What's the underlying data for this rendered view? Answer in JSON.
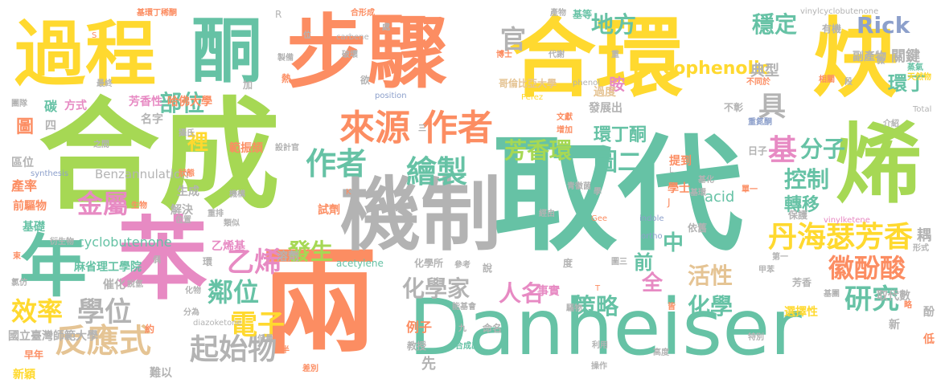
{
  "words": [
    {
      "text": "取代",
      "color": "#66c2a5"
    },
    {
      "text": "合成",
      "color": "#a6d854"
    },
    {
      "text": "合環",
      "color": "#ffd92f"
    },
    {
      "text": "炔",
      "color": "#ffd92f"
    },
    {
      "text": "烯",
      "color": "#a6d854"
    },
    {
      "text": "苯",
      "color": "#e78ac3"
    },
    {
      "text": "兩",
      "color": "#fc8d62"
    },
    {
      "text": "Danheiser",
      "color": "#66c2a5"
    },
    {
      "text": "步驟",
      "color": "#fc8d62"
    },
    {
      "text": "機制",
      "color": "#b3b3b3"
    },
    {
      "text": "過程",
      "color": "#ffd92f"
    },
    {
      "text": "酮",
      "color": "#66c2a5"
    },
    {
      "text": "年",
      "color": "#66c2a5"
    },
    {
      "text": "來源",
      "color": "#fc8d62"
    },
    {
      "text": "作者",
      "color": "#fc8d62"
    },
    {
      "text": "作者",
      "color": "#66c2a5"
    },
    {
      "text": "繪製",
      "color": "#66c2a5"
    },
    {
      "text": "丹海瑟芳香",
      "color": "#ffd92f"
    },
    {
      "text": "徽酚酸",
      "color": "#fc8d62"
    },
    {
      "text": "基",
      "color": "#e78ac3"
    },
    {
      "text": "分子",
      "color": "#66c2a5"
    },
    {
      "text": "研究",
      "color": "#66c2a5"
    },
    {
      "text": "反應式",
      "color": "#e5c494"
    },
    {
      "text": "起始物",
      "color": "#b3b3b3"
    },
    {
      "text": "學位",
      "color": "#b3b3b3"
    },
    {
      "text": "效率",
      "color": "#ffd92f"
    },
    {
      "text": "金屬",
      "color": "#e78ac3"
    },
    {
      "text": "乙烯",
      "color": "#e78ac3"
    },
    {
      "text": "電子",
      "color": "#ffd92f"
    },
    {
      "text": "鄰位",
      "color": "#66c2a5"
    },
    {
      "text": "化學家",
      "color": "#b3b3b3"
    },
    {
      "text": "人名",
      "color": "#e78ac3"
    },
    {
      "text": "策略",
      "color": "#66c2a5"
    },
    {
      "text": "化學",
      "color": "#66c2a5"
    },
    {
      "text": "活性",
      "color": "#e5c494"
    },
    {
      "text": "發生",
      "color": "#a6d854"
    },
    {
      "text": "芳香環",
      "color": "#a6d854"
    },
    {
      "text": "控制",
      "color": "#66c2a5"
    },
    {
      "text": "轉移",
      "color": "#66c2a5"
    },
    {
      "text": "環丁酮",
      "color": "#66c2a5"
    },
    {
      "text": "環丁",
      "color": "#66c2a5"
    },
    {
      "text": "圖二",
      "color": "#66c2a5"
    },
    {
      "text": "地方",
      "color": "#66c2a5"
    },
    {
      "text": "穩定",
      "color": "#66c2a5"
    },
    {
      "text": "mycophenolic",
      "color": "#ffd92f"
    },
    {
      "text": "Rick",
      "color": "#8da0cb"
    },
    {
      "text": "官",
      "color": "#b3b3b3"
    },
    {
      "text": "部位",
      "color": "#66c2a5"
    },
    {
      "text": "圖",
      "color": "#fc8d62"
    },
    {
      "text": "具",
      "color": "#b3b3b3"
    },
    {
      "text": "裡",
      "color": "#ffd92f"
    },
    {
      "text": "前",
      "color": "#66c2a5"
    },
    {
      "text": "中",
      "color": "#66c2a5"
    },
    {
      "text": "全",
      "color": "#e78ac3"
    },
    {
      "text": "耦",
      "color": "#b3b3b3"
    },
    {
      "text": "cyclobutenone",
      "color": "#66c2a5"
    },
    {
      "text": "acid",
      "color": "#66c2a5"
    },
    {
      "text": "Benzannulation",
      "color": "#b3b3b3"
    },
    {
      "text": "胺",
      "color": "#e78ac3"
    },
    {
      "text": "關鍵",
      "color": "#b3b3b3"
    },
    {
      "text": "典型",
      "color": "#b3b3b3"
    },
    {
      "text": "副產物",
      "color": "#b3b3b3"
    },
    {
      "text": "芳香性",
      "color": "#e78ac3"
    },
    {
      "text": "哈佛大學",
      "color": "#fc8d62"
    },
    {
      "text": "麻省理工學院",
      "color": "#66c2a5"
    },
    {
      "text": "國立臺灣師範大學",
      "color": "#b3b3b3"
    },
    {
      "text": "哥倫比亞大學",
      "color": "#e5c494"
    },
    {
      "text": "乙烯基",
      "color": "#e78ac3"
    },
    {
      "text": "產率",
      "color": "#fc8d62"
    },
    {
      "text": "前驅物",
      "color": "#fc8d62"
    },
    {
      "text": "基礎",
      "color": "#66c2a5"
    },
    {
      "text": "區位",
      "color": "#b3b3b3"
    },
    {
      "text": "碳",
      "color": "#66c2a5"
    },
    {
      "text": "方式",
      "color": "#e78ac3"
    },
    {
      "text": "名字",
      "color": "#b3b3b3"
    },
    {
      "text": "生成",
      "color": "#b3b3b3"
    },
    {
      "text": "解決",
      "color": "#b3b3b3"
    },
    {
      "text": "範振頡",
      "color": "#fc8d62"
    },
    {
      "text": "試劑",
      "color": "#fc8d62"
    },
    {
      "text": "設計官",
      "color": "#b3b3b3"
    },
    {
      "text": "溶劑",
      "color": "#b3b3b3"
    },
    {
      "text": "例子",
      "color": "#fc8d62"
    },
    {
      "text": "教授",
      "color": "#b3b3b3"
    },
    {
      "text": "先",
      "color": "#b3b3b3"
    },
    {
      "text": "事實",
      "color": "#e78ac3"
    },
    {
      "text": "選擇性",
      "color": "#ffd92f"
    },
    {
      "text": "取代數",
      "color": "#b3b3b3"
    },
    {
      "text": "酚",
      "color": "#b3b3b3"
    },
    {
      "text": "芳香",
      "color": "#b3b3b3"
    },
    {
      "text": "保護",
      "color": "#b3b3b3"
    },
    {
      "text": "依舊",
      "color": "#b3b3b3"
    },
    {
      "text": "acetylene",
      "color": "#66c2a5"
    },
    {
      "text": "vinylketene",
      "color": "#e78ac3"
    },
    {
      "text": "indole",
      "color": "#8da0cb"
    },
    {
      "text": "ortho",
      "color": "#8da0cb"
    },
    {
      "text": "Gee",
      "color": "#fc8d62"
    },
    {
      "text": "diazoketone",
      "color": "#b3b3b3"
    },
    {
      "text": "synthesis",
      "color": "#8da0cb"
    },
    {
      "text": "position",
      "color": "#8da0cb"
    },
    {
      "text": "phenol",
      "color": "#b3b3b3"
    },
    {
      "text": "carbene",
      "color": "#b3b3b3"
    },
    {
      "text": "Perez",
      "color": "#ffd92f"
    },
    {
      "text": "Total",
      "color": "#b3b3b3"
    },
    {
      "text": "vinylcyclobutenone",
      "color": "#b3b3b3"
    },
    {
      "text": "J",
      "color": "#fc8d62"
    },
    {
      "text": "R",
      "color": "#b3b3b3"
    },
    {
      "text": "K",
      "color": "#fc8d62"
    },
    {
      "text": "L",
      "color": "#b3b3b3"
    },
    {
      "text": "基環丁稀酮",
      "color": "#fc8d62"
    },
    {
      "text": "合形成",
      "color": "#fc8d62"
    },
    {
      "text": "基等",
      "color": "#66c2a5"
    },
    {
      "text": "有機",
      "color": "#b3b3b3"
    },
    {
      "text": "蒸氣",
      "color": "#66c2a5"
    },
    {
      "text": "天然物",
      "color": "#ffd92f"
    },
    {
      "text": "發展出",
      "color": "#b3b3b3"
    },
    {
      "text": "過度",
      "color": "#e5c494"
    },
    {
      "text": "學士",
      "color": "#fc8d62"
    },
    {
      "text": "提到",
      "color": "#fc8d62"
    },
    {
      "text": "不彰",
      "color": "#b3b3b3"
    },
    {
      "text": "日子",
      "color": "#b3b3b3"
    },
    {
      "text": "化學所",
      "color": "#b3b3b3"
    },
    {
      "text": "參考",
      "color": "#b3b3b3"
    },
    {
      "text": "能基會",
      "color": "#b3b3b3"
    },
    {
      "text": "合成出",
      "color": "#66c2a5"
    },
    {
      "text": "命名",
      "color": "#b3b3b3"
    },
    {
      "text": "差別",
      "color": "#fc8d62"
    },
    {
      "text": "操作",
      "color": "#b3b3b3"
    },
    {
      "text": "利用",
      "color": "#b3b3b3"
    },
    {
      "text": "高度",
      "color": "#b3b3b3"
    },
    {
      "text": "特別",
      "color": "#b3b3b3"
    },
    {
      "text": "低",
      "color": "#fc8d62"
    },
    {
      "text": "新",
      "color": "#b3b3b3"
    },
    {
      "text": "介紹",
      "color": "#b3b3b3"
    },
    {
      "text": "形式",
      "color": "#b3b3b3"
    },
    {
      "text": "新穎",
      "color": "#ffd92f"
    },
    {
      "text": "早年",
      "color": "#fc8d62"
    },
    {
      "text": "難以",
      "color": "#b3b3b3"
    },
    {
      "text": "分為",
      "color": "#b3b3b3"
    },
    {
      "text": "催化",
      "color": "#b3b3b3"
    },
    {
      "text": "說氫",
      "color": "#b3b3b3"
    },
    {
      "text": "氯仿",
      "color": "#b3b3b3"
    },
    {
      "text": "衍生物",
      "color": "#b3b3b3"
    },
    {
      "text": "生物",
      "color": "#fc8d62"
    },
    {
      "text": "機構",
      "color": "#b3b3b3"
    },
    {
      "text": "位置",
      "color": "#b3b3b3"
    },
    {
      "text": "重排",
      "color": "#b3b3b3"
    },
    {
      "text": "類似",
      "color": "#b3b3b3"
    },
    {
      "text": "狀態",
      "color": "#fc8d62"
    },
    {
      "text": "攝氏",
      "color": "#b3b3b3"
    },
    {
      "text": "團隊",
      "color": "#b3b3b3"
    },
    {
      "text": "最終",
      "color": "#b3b3b3"
    },
    {
      "text": "製備",
      "color": "#b3b3b3"
    },
    {
      "text": "熱",
      "color": "#fc8d62"
    },
    {
      "text": "破壞",
      "color": "#b3b3b3"
    },
    {
      "text": "博士",
      "color": "#fc8d62"
    },
    {
      "text": "代謝",
      "color": "#b3b3b3"
    },
    {
      "text": "產物",
      "color": "#b3b3b3"
    },
    {
      "text": "不同於",
      "color": "#fc8d62"
    },
    {
      "text": "文獻",
      "color": "#fc8d62"
    },
    {
      "text": "增加",
      "color": "#fc8d62"
    },
    {
      "text": "重氮酮",
      "color": "#8da0cb"
    },
    {
      "text": "基化",
      "color": "#b3b3b3"
    },
    {
      "text": "基環",
      "color": "#b3b3b3"
    },
    {
      "text": "單一",
      "color": "#fc8d62"
    },
    {
      "text": "甲苯",
      "color": "#b3b3b3"
    },
    {
      "text": "第一",
      "color": "#b3b3b3"
    },
    {
      "text": "基團",
      "color": "#b3b3b3"
    },
    {
      "text": "驅物",
      "color": "#b3b3b3"
    },
    {
      "text": "相關",
      "color": "#fc8d62"
    },
    {
      "text": "經由",
      "color": "#b3b3b3"
    },
    {
      "text": "青徽菌",
      "color": "#b3b3b3"
    },
    {
      "text": "圖三",
      "color": "#b3b3b3"
    },
    {
      "text": "偶",
      "color": "#b3b3b3"
    },
    {
      "text": "環",
      "color": "#b3b3b3"
    },
    {
      "text": "之間",
      "color": "#b3b3b3"
    },
    {
      "text": "加",
      "color": "#b3b3b3"
    },
    {
      "text": "欲",
      "color": "#b3b3b3"
    },
    {
      "text": "位",
      "color": "#b3b3b3"
    },
    {
      "text": "處",
      "color": "#b3b3b3"
    },
    {
      "text": "四",
      "color": "#b3b3b3"
    },
    {
      "text": "約",
      "color": "#fc8d62"
    },
    {
      "text": "九",
      "color": "#b3b3b3"
    },
    {
      "text": "度",
      "color": "#b3b3b3"
    },
    {
      "text": "說",
      "color": "#b3b3b3"
    },
    {
      "text": "段",
      "color": "#b3b3b3"
    },
    {
      "text": "微",
      "color": "#b3b3b3"
    },
    {
      "text": "皆",
      "color": "#fc8d62"
    },
    {
      "text": "略",
      "color": "#fc8d62"
    },
    {
      "text": "重",
      "color": "#b3b3b3"
    },
    {
      "text": "學",
      "color": "#b3b3b3"
    },
    {
      "text": "半",
      "color": "#fc8d62"
    },
    {
      "text": "束",
      "color": "#fc8d62"
    },
    {
      "text": "低量",
      "color": "#b3b3b3"
    },
    {
      "text": "化物",
      "color": "#b3b3b3"
    },
    {
      "text": "三",
      "color": "#b3b3b3"
    },
    {
      "text": "T",
      "color": "#fc8d62"
    },
    {
      "text": "S",
      "color": "#fc8d62"
    }
  ]
}
